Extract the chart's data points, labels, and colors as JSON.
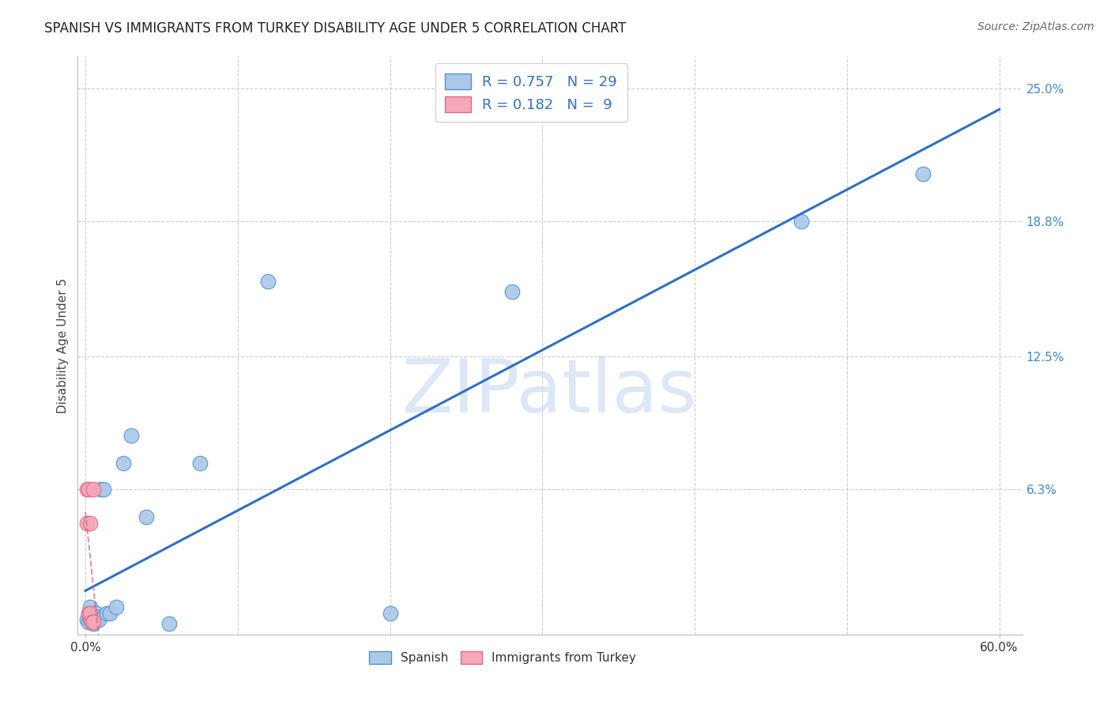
{
  "title": "SPANISH VS IMMIGRANTS FROM TURKEY DISABILITY AGE UNDER 5 CORRELATION CHART",
  "source": "Source: ZipAtlas.com",
  "xlabel": "",
  "ylabel": "Disability Age Under 5",
  "xlim": [
    -0.005,
    0.615
  ],
  "ylim": [
    -0.005,
    0.265
  ],
  "xtick_positions": [
    0.0,
    0.6
  ],
  "xticklabels": [
    "0.0%",
    "60.0%"
  ],
  "ytick_positions": [
    0.063,
    0.125,
    0.188,
    0.25
  ],
  "ytick_labels": [
    "6.3%",
    "12.5%",
    "18.8%",
    "25.0%"
  ],
  "spanish_x": [
    0.001,
    0.002,
    0.002,
    0.003,
    0.003,
    0.004,
    0.005,
    0.005,
    0.006,
    0.006,
    0.007,
    0.007,
    0.008,
    0.009,
    0.01,
    0.012,
    0.014,
    0.016,
    0.02,
    0.025,
    0.03,
    0.04,
    0.055,
    0.075,
    0.12,
    0.2,
    0.28,
    0.47,
    0.55
  ],
  "spanish_y": [
    0.002,
    0.001,
    0.005,
    0.002,
    0.008,
    0.001,
    0.003,
    0.0,
    0.003,
    0.005,
    0.002,
    0.005,
    0.003,
    0.002,
    0.063,
    0.063,
    0.005,
    0.005,
    0.008,
    0.075,
    0.088,
    0.05,
    0.0,
    0.075,
    0.16,
    0.005,
    0.155,
    0.188,
    0.21
  ],
  "turkey_x": [
    0.001,
    0.001,
    0.002,
    0.002,
    0.003,
    0.003,
    0.004,
    0.005,
    0.005
  ],
  "turkey_y": [
    0.063,
    0.047,
    0.063,
    0.005,
    0.005,
    0.047,
    0.001,
    0.001,
    0.063
  ],
  "spanish_color": "#aac8e8",
  "turkey_color": "#f4a8b8",
  "spanish_edge_color": "#5090d0",
  "turkey_edge_color": "#e06880",
  "spanish_line_color": "#3070c0",
  "turkey_line_color": "#d06080",
  "r_spanish": 0.757,
  "n_spanish": 29,
  "r_turkey": 0.182,
  "n_turkey": 9,
  "watermark": "ZIPatlas",
  "watermark_color": "#c8d8f0",
  "legend_label_spanish": "Spanish",
  "legend_label_turkey": "Immigrants from Turkey",
  "background_color": "#ffffff",
  "grid_color": "#cccccc",
  "ytick_label_color": "#4488cc",
  "spine_color": "#bbbbbb"
}
